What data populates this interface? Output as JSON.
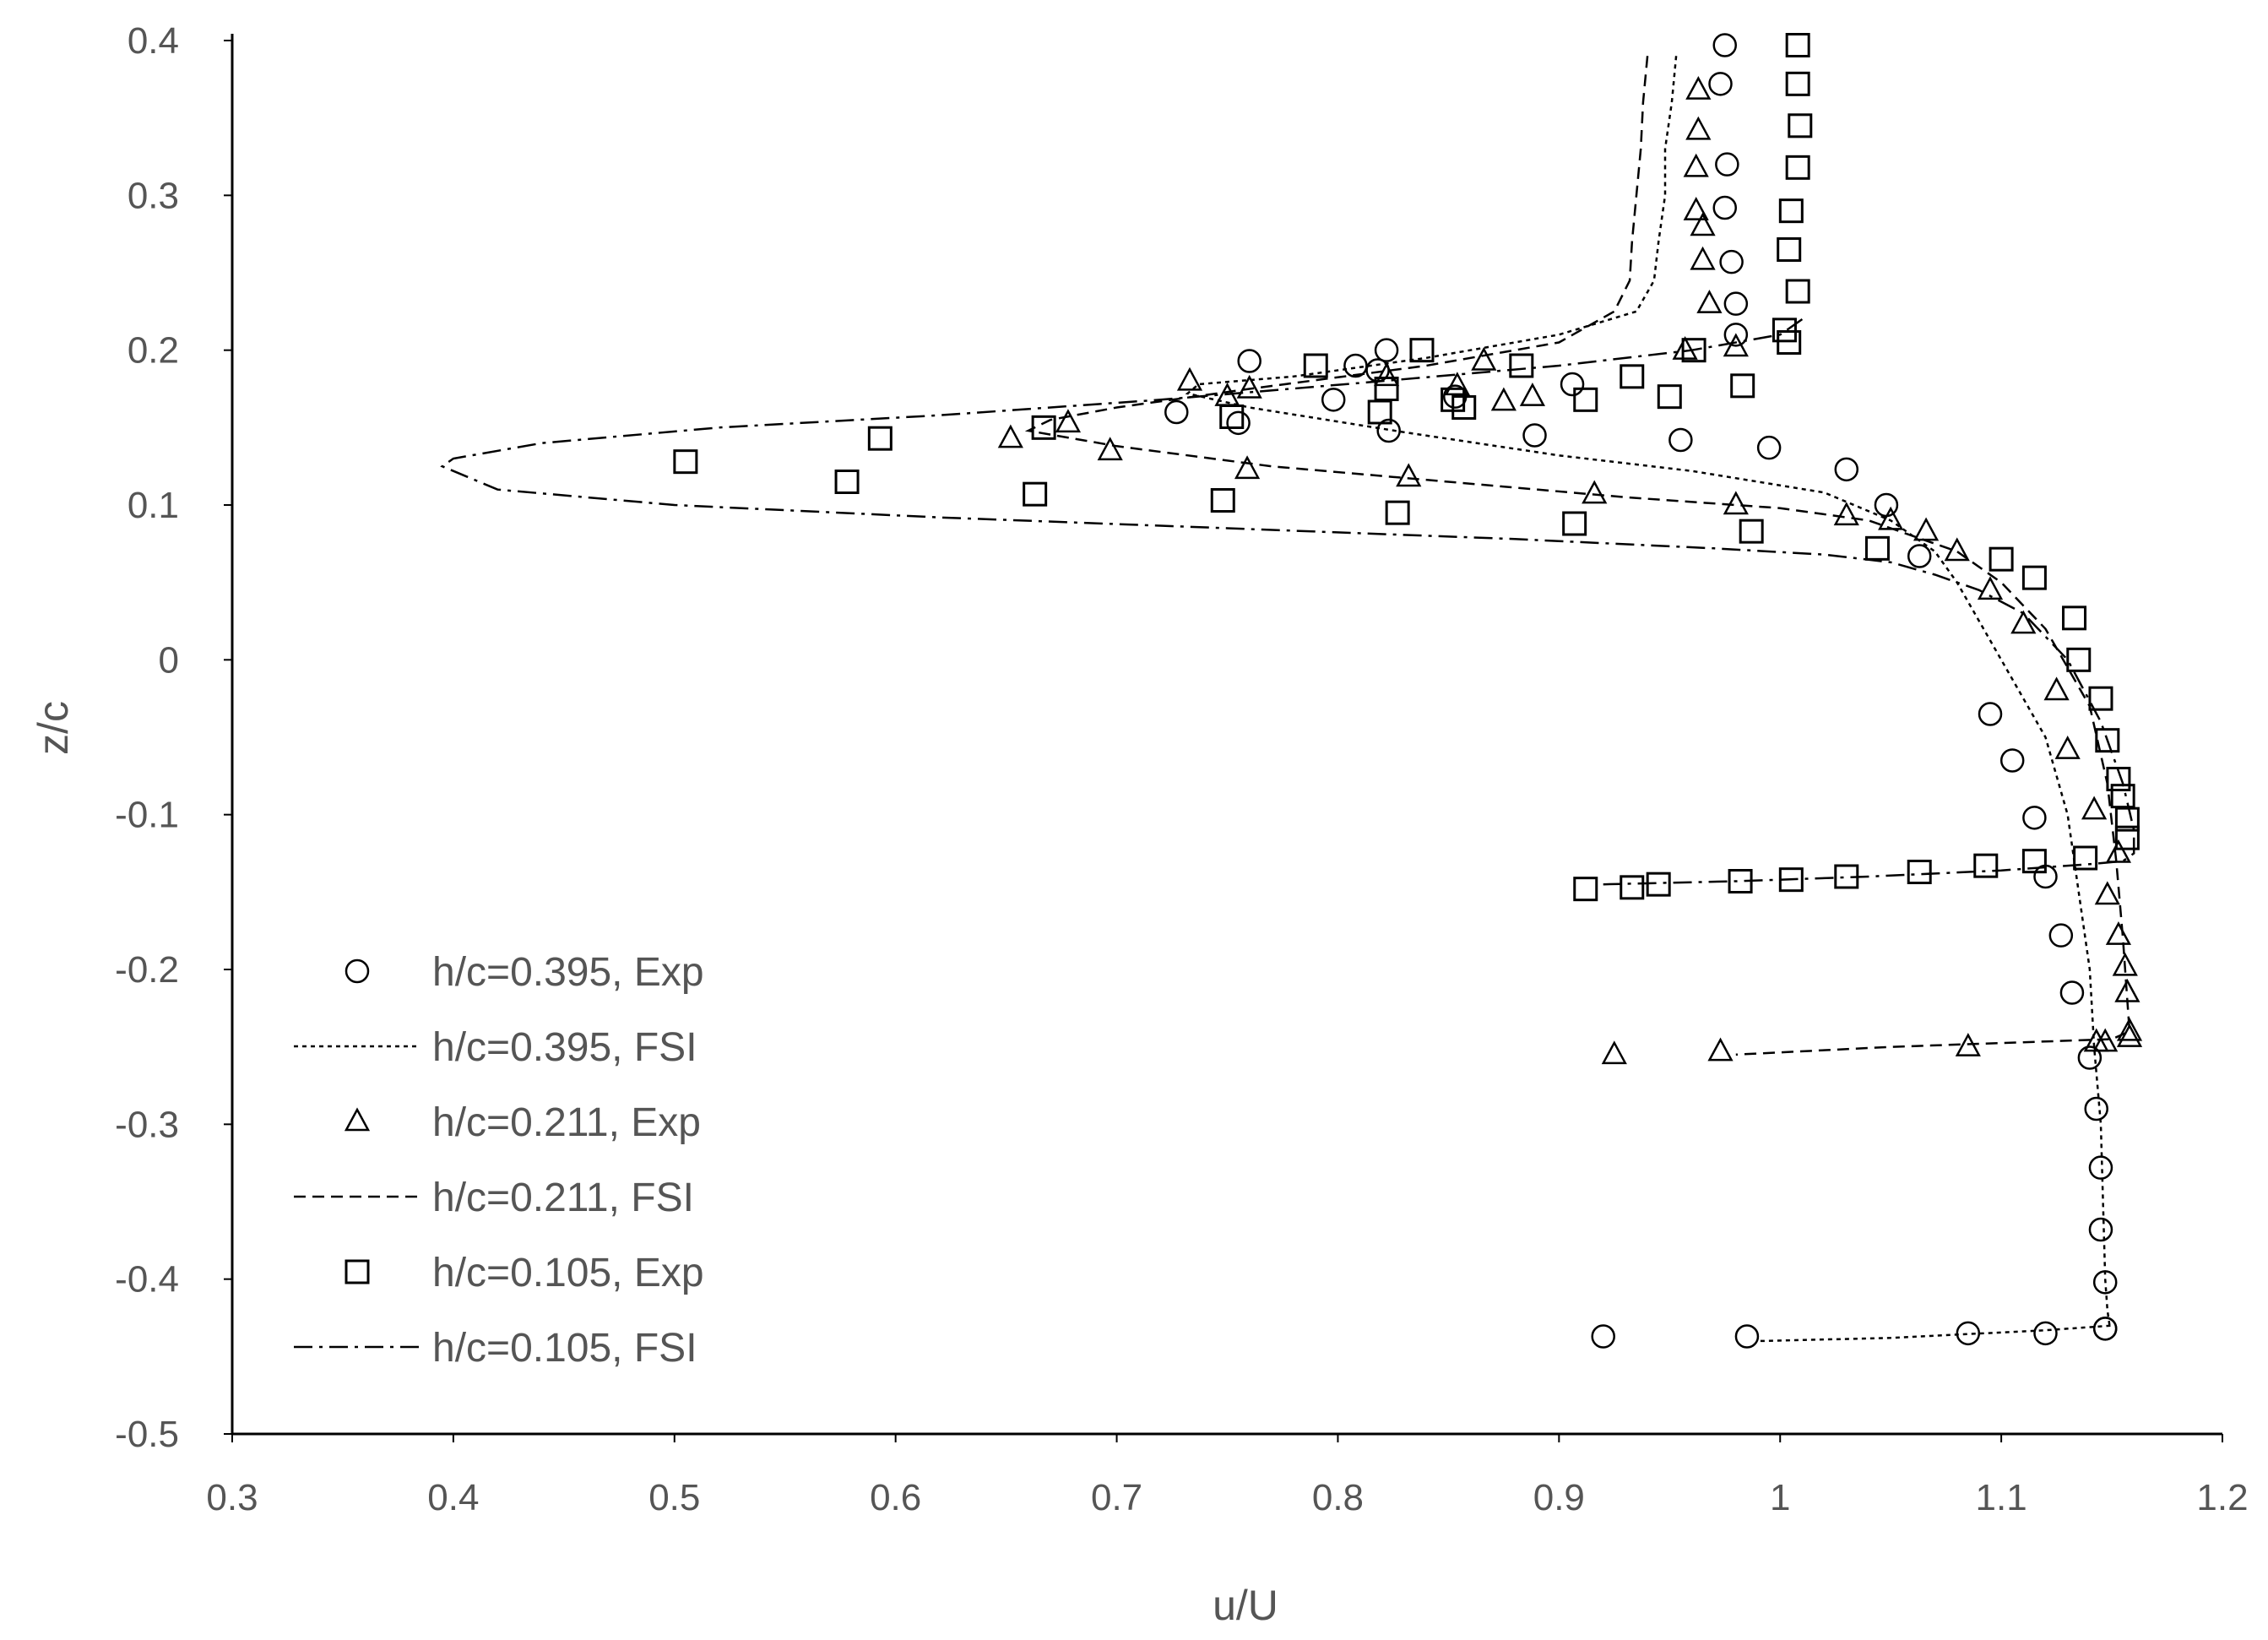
{
  "chart_data": {
    "type": "scatter",
    "title": "",
    "xlabel": "u/U",
    "ylabel": "z/c",
    "xlim": [
      0.3,
      1.2
    ],
    "ylim": [
      -0.5,
      0.4
    ],
    "xticks": [
      "0.3",
      "0.4",
      "0.5",
      "0.6",
      "0.7",
      "0.8",
      "0.9",
      "1",
      "1.1",
      "1.2"
    ],
    "yticks": [
      "0.4",
      "0.3",
      "0.2",
      "0.1",
      "0",
      "-0.1",
      "-0.2",
      "-0.3",
      "-0.4",
      "-0.5"
    ],
    "grid": false,
    "legend_position": "bottom-left",
    "legend": [
      {
        "label": "h/c=0.395, Exp",
        "symbol": "circle"
      },
      {
        "label": "h/c=0.395, FSI",
        "symbol": "dotted-line"
      },
      {
        "label": "h/c=0.211, Exp",
        "symbol": "triangle"
      },
      {
        "label": "h/c=0.211, FSI",
        "symbol": "dashed-line"
      },
      {
        "label": "h/c=0.105, Exp",
        "symbol": "square"
      },
      {
        "label": "h/c=0.105, FSI",
        "symbol": "dash-dot-line"
      }
    ],
    "series": [
      {
        "name": "h/c=0.395, Exp",
        "marker": "circle",
        "x": [
          0.975,
          0.973,
          0.976,
          0.975,
          0.978,
          0.98,
          0.98,
          0.76,
          0.808,
          0.818,
          0.822,
          0.853,
          0.906,
          0.798,
          0.727,
          0.755,
          0.823,
          0.889,
          0.955,
          0.995,
          1.03,
          1.048,
          1.063,
          1.095,
          1.105,
          1.115,
          1.12,
          1.127,
          1.132,
          1.14,
          1.143,
          1.145,
          1.145,
          1.147,
          1.147,
          0.92,
          0.985,
          1.085,
          1.12,
          1.147
        ],
        "y": [
          0.397,
          0.372,
          0.32,
          0.292,
          0.257,
          0.23,
          0.21,
          0.193,
          0.19,
          0.187,
          0.2,
          0.17,
          0.178,
          0.168,
          0.16,
          0.153,
          0.148,
          0.145,
          0.142,
          0.137,
          0.123,
          0.1,
          0.067,
          -0.035,
          -0.065,
          -0.102,
          -0.14,
          -0.178,
          -0.215,
          -0.257,
          -0.29,
          -0.328,
          -0.368,
          -0.402,
          -0.432,
          -0.437,
          -0.437,
          -0.435,
          -0.435,
          -0.432
        ]
      },
      {
        "name": "h/c=0.211, Exp",
        "marker": "triangle",
        "x": [
          0.963,
          0.963,
          0.962,
          0.962,
          0.965,
          0.965,
          0.968,
          0.957,
          0.98,
          0.866,
          0.822,
          0.854,
          0.888,
          0.875,
          0.733,
          0.76,
          0.75,
          0.678,
          0.652,
          0.697,
          0.759,
          0.832,
          0.916,
          0.98,
          1.03,
          1.05,
          1.066,
          1.08,
          1.095,
          1.11,
          1.125,
          1.13,
          1.142,
          1.153,
          1.148,
          1.153,
          1.156,
          1.157,
          1.158,
          1.158,
          1.147,
          0.925,
          0.973,
          1.085,
          1.143
        ],
        "y": [
          0.368,
          0.342,
          0.318,
          0.29,
          0.28,
          0.258,
          0.23,
          0.2,
          0.202,
          0.193,
          0.183,
          0.177,
          0.17,
          0.167,
          0.18,
          0.175,
          0.17,
          0.153,
          0.143,
          0.135,
          0.123,
          0.118,
          0.107,
          0.1,
          0.093,
          0.09,
          0.083,
          0.07,
          0.045,
          0.023,
          -0.02,
          -0.058,
          -0.097,
          -0.125,
          -0.152,
          -0.178,
          -0.198,
          -0.215,
          -0.24,
          -0.244,
          -0.247,
          -0.255,
          -0.253,
          -0.25,
          -0.247
        ]
      },
      {
        "name": "h/c=0.105, Exp",
        "marker": "square",
        "x": [
          1.008,
          1.008,
          1.009,
          1.008,
          1.005,
          1.004,
          1.008,
          1.002,
          1.004,
          0.961,
          0.883,
          0.838,
          0.79,
          0.822,
          0.819,
          0.933,
          0.95,
          0.983,
          0.912,
          0.857,
          0.852,
          0.752,
          0.667,
          0.593,
          0.505,
          0.578,
          0.663,
          0.748,
          0.827,
          0.907,
          0.987,
          1.044,
          1.1,
          1.115,
          1.133,
          1.135,
          1.145,
          1.148,
          1.153,
          1.155,
          1.157,
          1.157,
          1.138,
          1.115,
          1.093,
          1.063,
          1.03,
          1.005,
          0.982,
          0.945,
          0.933,
          0.912
        ],
        "y": [
          0.397,
          0.372,
          0.345,
          0.318,
          0.29,
          0.265,
          0.238,
          0.213,
          0.205,
          0.2,
          0.19,
          0.2,
          0.19,
          0.175,
          0.16,
          0.183,
          0.17,
          0.177,
          0.168,
          0.163,
          0.168,
          0.157,
          0.15,
          0.143,
          0.128,
          0.115,
          0.107,
          0.103,
          0.095,
          0.088,
          0.083,
          0.072,
          0.065,
          0.053,
          0.027,
          0.0,
          -0.025,
          -0.052,
          -0.077,
          -0.088,
          -0.103,
          -0.115,
          -0.128,
          -0.13,
          -0.133,
          -0.137,
          -0.14,
          -0.142,
          -0.143,
          -0.145,
          -0.147,
          -0.148
        ]
      },
      {
        "name": "h/c=0.395, FSI",
        "line": "dotted",
        "x": [
          0.953,
          0.951,
          0.948,
          0.948,
          0.945,
          0.943,
          0.935,
          0.9,
          0.84,
          0.78,
          0.737,
          0.732,
          0.76,
          0.83,
          0.9,
          0.96,
          1.02,
          1.05,
          1.07,
          1.08,
          1.1,
          1.12,
          1.13,
          1.135,
          1.14,
          1.142,
          1.145,
          1.146,
          1.147,
          1.148,
          1.149,
          1.15,
          1.12,
          1.05,
          0.99
        ],
        "y": [
          0.39,
          0.36,
          0.33,
          0.3,
          0.27,
          0.245,
          0.225,
          0.21,
          0.195,
          0.183,
          0.178,
          0.172,
          0.163,
          0.147,
          0.132,
          0.122,
          0.108,
          0.09,
          0.07,
          0.05,
          0.0,
          -0.05,
          -0.1,
          -0.15,
          -0.2,
          -0.25,
          -0.3,
          -0.35,
          -0.4,
          -0.42,
          -0.43,
          -0.43,
          -0.433,
          -0.438,
          -0.44
        ]
      },
      {
        "name": "h/c=0.211, FSI",
        "line": "dashed",
        "x": [
          0.94,
          0.938,
          0.937,
          0.935,
          0.933,
          0.932,
          0.925,
          0.9,
          0.84,
          0.76,
          0.7,
          0.67,
          0.66,
          0.7,
          0.77,
          0.85,
          0.93,
          1.0,
          1.04,
          1.08,
          1.1,
          1.12,
          1.14,
          1.148,
          1.152,
          1.155,
          1.157,
          1.158,
          1.15,
          1.05,
          0.98
        ],
        "y": [
          0.39,
          0.36,
          0.33,
          0.3,
          0.27,
          0.245,
          0.225,
          0.205,
          0.19,
          0.175,
          0.163,
          0.155,
          0.148,
          0.138,
          0.125,
          0.115,
          0.105,
          0.098,
          0.09,
          0.07,
          0.05,
          0.02,
          -0.03,
          -0.08,
          -0.13,
          -0.18,
          -0.22,
          -0.24,
          -0.245,
          -0.25,
          -0.255
        ]
      },
      {
        "name": "h/c=0.105, FSI",
        "line": "dash-dot",
        "x": [
          1.01,
          1.0,
          0.96,
          0.9,
          0.82,
          0.72,
          0.62,
          0.52,
          0.44,
          0.4,
          0.395,
          0.42,
          0.5,
          0.62,
          0.75,
          0.88,
          0.97,
          1.02,
          1.05,
          1.07,
          1.09,
          1.11,
          1.13,
          1.145,
          1.155,
          1.16,
          1.16,
          1.155,
          1.14,
          1.1,
          1.04,
          0.98,
          0.92
        ],
        "y": [
          0.22,
          0.21,
          0.2,
          0.19,
          0.18,
          0.168,
          0.158,
          0.15,
          0.14,
          0.13,
          0.125,
          0.11,
          0.1,
          0.092,
          0.085,
          0.078,
          0.072,
          0.068,
          0.063,
          0.055,
          0.045,
          0.03,
          0.0,
          -0.04,
          -0.08,
          -0.11,
          -0.125,
          -0.13,
          -0.132,
          -0.136,
          -0.14,
          -0.143,
          -0.145
        ]
      }
    ]
  }
}
